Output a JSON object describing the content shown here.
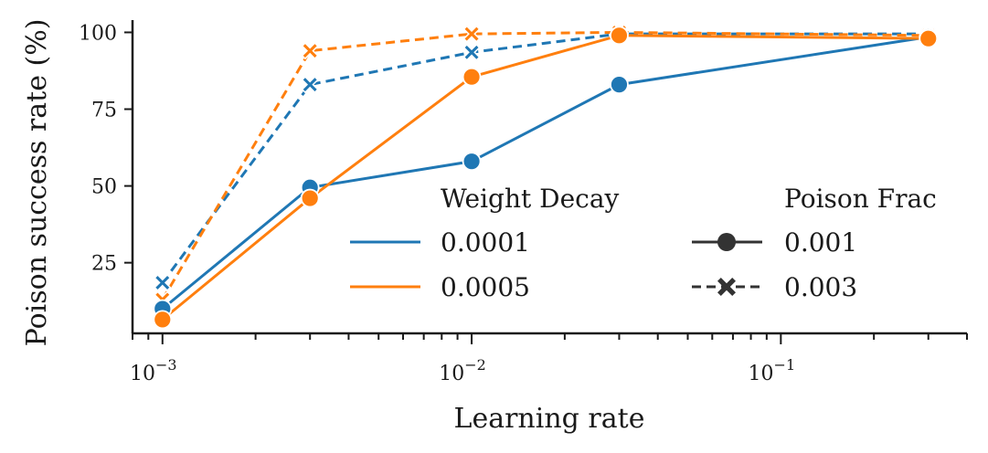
{
  "chart_data": {
    "type": "line",
    "title": "",
    "xlabel": "Learning rate",
    "ylabel": "Poison success rate (%)",
    "xscale": "log",
    "xlim": [
      0.0008,
      0.4
    ],
    "ylim": [
      2,
      104
    ],
    "yticks": [
      25,
      50,
      75,
      100
    ],
    "xticks_major": [
      {
        "value": 0.001,
        "base": "10",
        "exp": "−3"
      },
      {
        "value": 0.01,
        "base": "10",
        "exp": "−2"
      },
      {
        "value": 0.1,
        "base": "10",
        "exp": "−1"
      }
    ],
    "x": [
      0.001,
      0.003,
      0.01,
      0.03,
      0.3
    ],
    "series": [
      {
        "name": "WD 0.0001, PF 0.001",
        "weight_decay": "0.0001",
        "poison_frac": "0.001",
        "color": "#1f77b4",
        "dash": "solid",
        "marker": "circle",
        "values": [
          10,
          49.5,
          58,
          83,
          98.5
        ]
      },
      {
        "name": "WD 0.0005, PF 0.001",
        "weight_decay": "0.0005",
        "poison_frac": "0.001",
        "color": "#ff7f0e",
        "dash": "solid",
        "marker": "circle",
        "values": [
          6.5,
          46,
          85.5,
          99,
          98
        ]
      },
      {
        "name": "WD 0.0001, PF 0.003",
        "weight_decay": "0.0001",
        "poison_frac": "0.003",
        "color": "#1f77b4",
        "dash": "dashed",
        "marker": "x",
        "values": [
          18.5,
          83,
          93.5,
          99.5,
          99.5
        ]
      },
      {
        "name": "WD 0.0005, PF 0.003",
        "weight_decay": "0.0005",
        "poison_frac": "0.003",
        "color": "#ff7f0e",
        "dash": "dashed",
        "marker": "x",
        "values": [
          13,
          94,
          99.5,
          100,
          99
        ]
      }
    ],
    "legend": {
      "placement": "lower-right",
      "weight_decay_title": "Weight Decay",
      "weight_decay_items": [
        {
          "label": "0.0001",
          "color": "#1f77b4"
        },
        {
          "label": "0.0005",
          "color": "#ff7f0e"
        }
      ],
      "poison_frac_title": "Poison Frac",
      "poison_frac_items": [
        {
          "label": "0.001",
          "dash": "solid",
          "marker": "circle",
          "color": "#333333"
        },
        {
          "label": "0.003",
          "dash": "dashed",
          "marker": "x",
          "color": "#333333"
        }
      ]
    }
  }
}
